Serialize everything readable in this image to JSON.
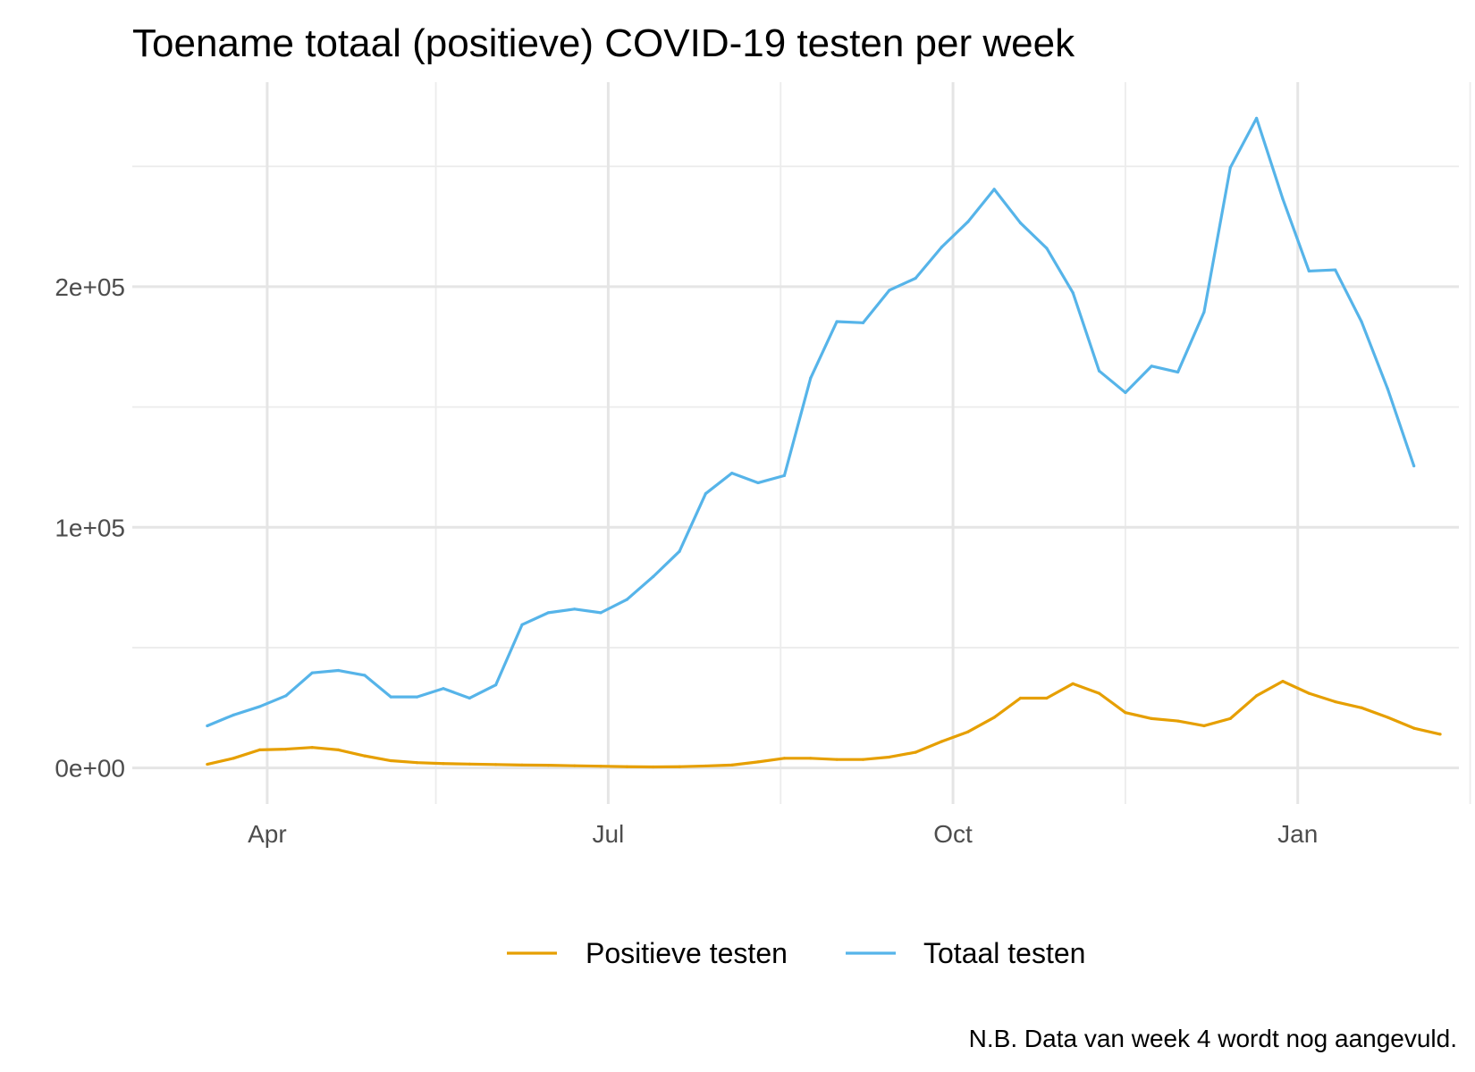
{
  "chart_data": {
    "type": "line",
    "title": "Toename totaal (positieve) COVID-19 testen per week",
    "caption": "N.B. Data van week 4 wordt nog aangevuld.",
    "xlabel": "",
    "ylabel": "",
    "x_start": "2020-03-16",
    "x_step_days": 7,
    "xlim": [
      "2020-02-25",
      "2021-02-13"
    ],
    "ylim": [
      -15000,
      285000
    ],
    "x_ticks": [
      {
        "date": "2020-04-01",
        "label": "Apr"
      },
      {
        "date": "2020-07-01",
        "label": "Jul"
      },
      {
        "date": "2020-10-01",
        "label": "Oct"
      },
      {
        "date": "2021-01-01",
        "label": "Jan"
      }
    ],
    "x_minor_ticks": [
      "2020-05-16",
      "2020-08-16",
      "2020-11-16",
      "2021-02-16"
    ],
    "y_ticks": [
      {
        "value": 0,
        "label": "0e+00"
      },
      {
        "value": 100000,
        "label": "1e+05"
      },
      {
        "value": 200000,
        "label": "2e+05"
      }
    ],
    "y_minor_ticks": [
      50000,
      150000,
      250000
    ],
    "grid": true,
    "legend_position": "bottom",
    "series": [
      {
        "name": "Positieve testen",
        "color": "#E69F00",
        "values": [
          1500,
          4000,
          7500,
          7800,
          8500,
          7500,
          5000,
          3000,
          2200,
          1800,
          1600,
          1400,
          1200,
          1100,
          900,
          700,
          500,
          400,
          500,
          800,
          1200,
          2500,
          4000,
          4000,
          3500,
          3500,
          4500,
          6500,
          11000,
          15000,
          21000,
          29000,
          29000,
          35000,
          31000,
          23000,
          20500,
          19500,
          17500,
          20500,
          30000,
          36000,
          31000,
          27500,
          25000,
          21000,
          16500,
          14000
        ]
      },
      {
        "name": "Totaal testen",
        "color": "#56B4E9",
        "values": [
          17500,
          22000,
          25500,
          30000,
          39500,
          40500,
          38500,
          29500,
          29500,
          33000,
          29000,
          34500,
          59500,
          64500,
          66000,
          64500,
          70000,
          79500,
          90000,
          114000,
          122500,
          118500,
          121500,
          162000,
          185500,
          185000,
          198500,
          203500,
          216500,
          227000,
          240500,
          226500,
          216000,
          197500,
          165000,
          156000,
          167000,
          164500,
          189500,
          249500,
          270000,
          236500,
          206500,
          207000,
          185500,
          157500,
          125500
        ]
      }
    ]
  }
}
